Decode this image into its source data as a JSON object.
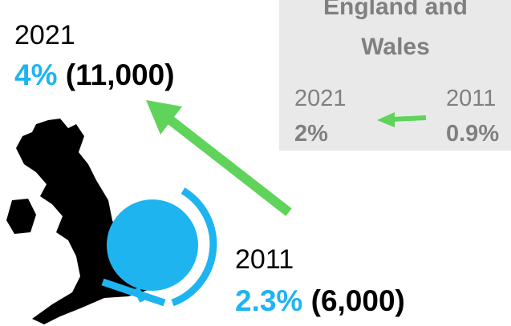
{
  "current": {
    "year": "2021",
    "percent": "4%",
    "count": "(11,000)"
  },
  "previous": {
    "year": "2011",
    "percent": "2.3%",
    "count": "(6,000)"
  },
  "comparison": {
    "title": [
      "England and",
      "Wales"
    ],
    "current": {
      "year": "2021",
      "percent": "2%"
    },
    "previous": {
      "year": "2011",
      "percent": "0.9%"
    }
  }
}
